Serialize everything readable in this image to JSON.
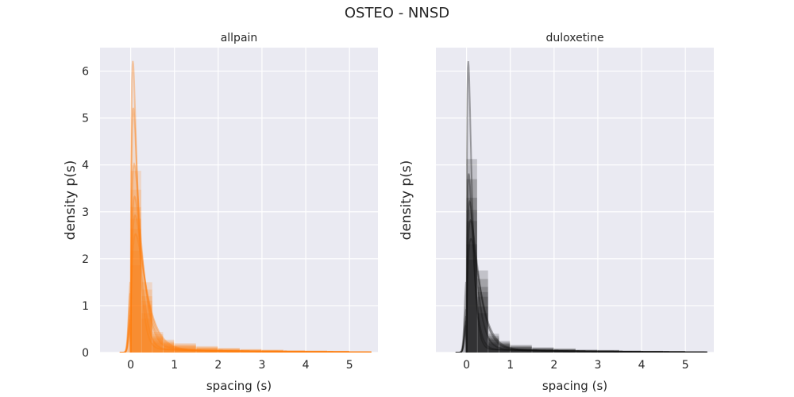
{
  "suptitle": "OSTEO - NNSD",
  "chart_data": [
    {
      "type": "area",
      "title": "allpain",
      "xlabel": "spacing (s)",
      "ylabel": "density p(s)",
      "color": "#ff7f0e",
      "xlim": [
        -0.7,
        5.65
      ],
      "ylim": [
        0,
        6.5
      ],
      "xticks": [
        0,
        1,
        2,
        3,
        4,
        5
      ],
      "yticks": [
        0,
        1,
        2,
        3,
        4,
        5,
        6
      ],
      "show_yticklabels": true,
      "grid": true,
      "background": "#eaeaf2",
      "histogram": {
        "bins": [
          0,
          0.25,
          0.5,
          0.75,
          1.0,
          1.5,
          2.0,
          2.5,
          3.0,
          3.5,
          4.0,
          4.5,
          5.0,
          5.5
        ],
        "density": [
          3.1,
          1.2,
          0.35,
          0.22,
          0.16,
          0.11,
          0.08,
          0.06,
          0.05,
          0.04,
          0.035,
          0.03,
          0.01
        ]
      },
      "kde_curves": [
        {
          "peak_x": 0.05,
          "peak_y": 6.2
        },
        {
          "peak_x": 0.06,
          "peak_y": 5.2
        },
        {
          "peak_x": 0.08,
          "peak_y": 4.0
        },
        {
          "peak_x": 0.09,
          "peak_y": 3.3
        },
        {
          "peak_x": 0.1,
          "peak_y": 2.9
        },
        {
          "peak_x": 0.11,
          "peak_y": 2.5
        }
      ]
    },
    {
      "type": "area",
      "title": "duloxetine",
      "xlabel": "spacing (s)",
      "ylabel": "density p(s)",
      "color": "#111111",
      "xlim": [
        -0.7,
        5.65
      ],
      "ylim": [
        0,
        6.5
      ],
      "xticks": [
        0,
        1,
        2,
        3,
        4,
        5
      ],
      "yticks": [
        0,
        1,
        2,
        3,
        4,
        5,
        6
      ],
      "show_yticklabels": false,
      "grid": true,
      "background": "#eaeaf2",
      "histogram": {
        "bins": [
          0,
          0.25,
          0.5,
          0.75,
          1.0,
          1.5,
          2.0,
          2.5,
          3.0,
          3.5,
          4.0,
          4.5,
          5.0,
          5.5
        ],
        "density": [
          3.3,
          1.4,
          0.32,
          0.2,
          0.13,
          0.09,
          0.07,
          0.05,
          0.045,
          0.035,
          0.03,
          0.025,
          0.01
        ]
      },
      "kde_curves": [
        {
          "peak_x": 0.04,
          "peak_y": 6.2
        },
        {
          "peak_x": 0.05,
          "peak_y": 3.8
        },
        {
          "peak_x": 0.07,
          "peak_y": 3.2
        },
        {
          "peak_x": 0.09,
          "peak_y": 2.8
        },
        {
          "peak_x": 0.1,
          "peak_y": 2.4
        }
      ]
    }
  ]
}
